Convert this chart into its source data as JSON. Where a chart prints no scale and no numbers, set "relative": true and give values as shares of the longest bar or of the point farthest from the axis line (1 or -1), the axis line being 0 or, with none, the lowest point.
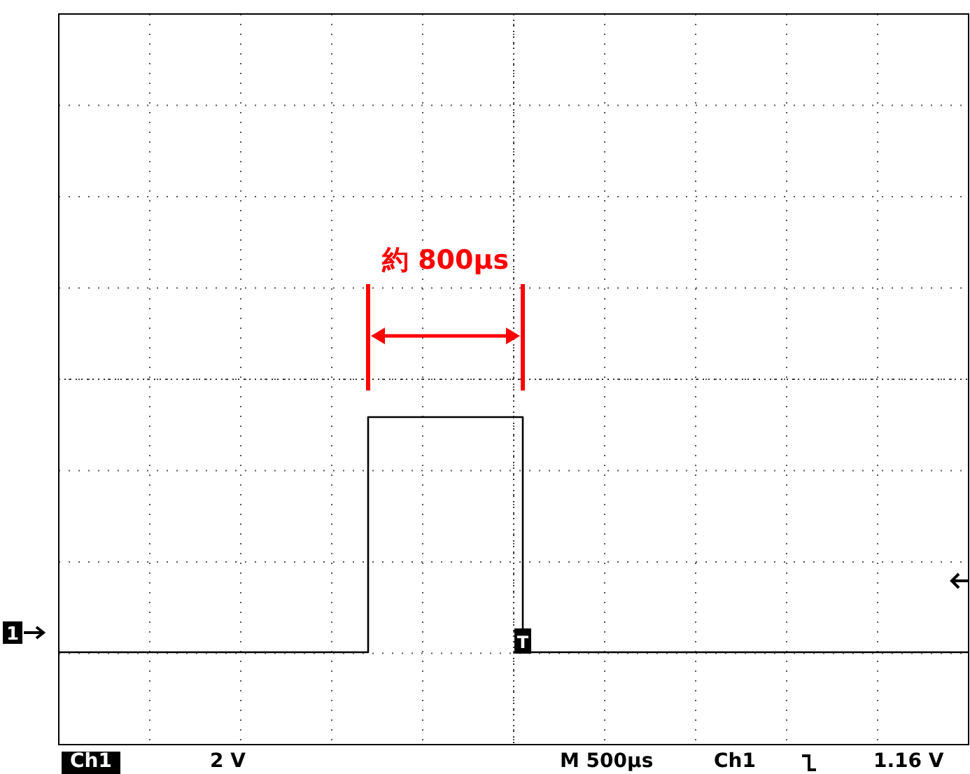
{
  "chart_data": {
    "type": "step",
    "relative": true,
    "grid": true,
    "line_style": "solid",
    "categories": [
      null,
      null,
      null,
      null,
      null,
      null,
      null,
      null,
      null,
      null,
      null,
      null,
      null,
      null,
      null,
      null,
      null,
      null,
      null,
      null,
      null,
      null,
      null,
      null,
      null,
      null,
      null,
      null,
      null,
      null,
      null,
      null,
      null,
      null,
      null,
      null,
      null,
      null,
      null,
      null,
      null,
      null,
      null,
      null,
      null,
      null,
      null,
      null,
      null,
      null,
      null,
      null,
      null,
      null,
      null,
      null,
      null,
      null,
      null,
      null,
      null,
      null,
      null,
      null,
      null,
      null,
      null,
      null,
      null,
      null,
      null,
      null,
      null,
      null,
      null,
      null,
      null,
      null,
      null,
      null,
      null,
      null,
      null,
      null,
      null,
      null,
      null,
      null,
      null,
      null,
      null,
      null,
      null,
      null,
      null,
      null,
      null,
      null,
      null,
      null,
      null
    ],
    "series": [
      {
        "color": "#000000",
        "values": [
          0,
          0,
          0,
          0,
          0,
          0,
          0,
          0,
          0,
          0,
          0,
          0,
          0,
          0,
          0,
          0,
          0,
          0,
          0,
          0,
          0,
          0,
          0,
          0,
          0,
          0,
          0,
          0,
          0,
          0,
          0,
          0,
          0,
          0,
          1,
          1,
          1,
          1,
          1,
          1,
          1,
          1,
          1,
          1,
          1,
          1,
          1,
          1,
          1,
          1,
          1,
          0,
          0,
          0,
          0,
          0,
          0,
          0,
          0,
          0,
          0,
          0,
          0,
          0,
          0,
          0,
          0,
          0,
          0,
          0,
          0,
          0,
          0,
          0,
          0,
          0,
          0,
          0,
          0,
          0,
          0,
          0,
          0,
          0,
          0,
          0,
          0,
          0,
          0,
          0,
          0,
          0,
          0,
          0,
          0,
          0,
          0,
          0,
          0,
          0,
          0
        ]
      }
    ],
    "annotations": [
      "約 800μs",
      "Ch1",
      "2 V",
      "M 500µs",
      "Ch1",
      "1.16 V",
      "1",
      "T"
    ]
  }
}
